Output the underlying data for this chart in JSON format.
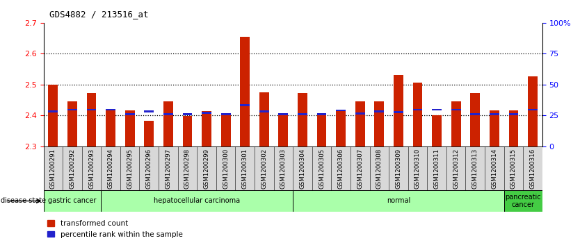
{
  "title": "GDS4882 / 213516_at",
  "samples": [
    "GSM1200291",
    "GSM1200292",
    "GSM1200293",
    "GSM1200294",
    "GSM1200295",
    "GSM1200296",
    "GSM1200297",
    "GSM1200298",
    "GSM1200299",
    "GSM1200300",
    "GSM1200301",
    "GSM1200302",
    "GSM1200303",
    "GSM1200304",
    "GSM1200305",
    "GSM1200306",
    "GSM1200307",
    "GSM1200308",
    "GSM1200309",
    "GSM1200310",
    "GSM1200311",
    "GSM1200312",
    "GSM1200313",
    "GSM1200314",
    "GSM1200315",
    "GSM1200316"
  ],
  "bar_values": [
    2.5,
    2.445,
    2.472,
    2.415,
    2.415,
    2.383,
    2.445,
    2.397,
    2.413,
    2.4,
    2.655,
    2.475,
    2.4,
    2.472,
    2.4,
    2.415,
    2.445,
    2.445,
    2.53,
    2.505,
    2.4,
    2.445,
    2.472,
    2.415,
    2.415,
    2.525
  ],
  "percentile_values": [
    2.41,
    2.415,
    2.415,
    2.415,
    2.4,
    2.41,
    2.4,
    2.4,
    2.405,
    2.4,
    2.43,
    2.41,
    2.4,
    2.4,
    2.4,
    2.413,
    2.403,
    2.41,
    2.408,
    2.415,
    2.415,
    2.415,
    2.4,
    2.4,
    2.4,
    2.415
  ],
  "group_spans": [
    {
      "label": "gastric cancer",
      "start": 0,
      "end": 3,
      "color": "#aaffaa",
      "dark": false
    },
    {
      "label": "hepatocellular carcinoma",
      "start": 3,
      "end": 13,
      "color": "#aaffaa",
      "dark": false
    },
    {
      "label": "normal",
      "start": 13,
      "end": 24,
      "color": "#aaffaa",
      "dark": false
    },
    {
      "label": "pancreatic\ncancer",
      "start": 24,
      "end": 26,
      "color": "#44cc44",
      "dark": true
    }
  ],
  "ymin": 2.3,
  "ymax": 2.7,
  "yticks": [
    2.3,
    2.4,
    2.5,
    2.6,
    2.7
  ],
  "right_yticks": [
    0,
    25,
    50,
    75,
    100
  ],
  "right_ytick_labels": [
    "0",
    "25",
    "50",
    "75",
    "100%"
  ],
  "bar_color": "#cc2200",
  "percentile_color": "#2222cc",
  "grid_values": [
    2.4,
    2.5,
    2.6
  ],
  "plot_bg": "#ffffff",
  "xtick_bg": "#d8d8d8"
}
